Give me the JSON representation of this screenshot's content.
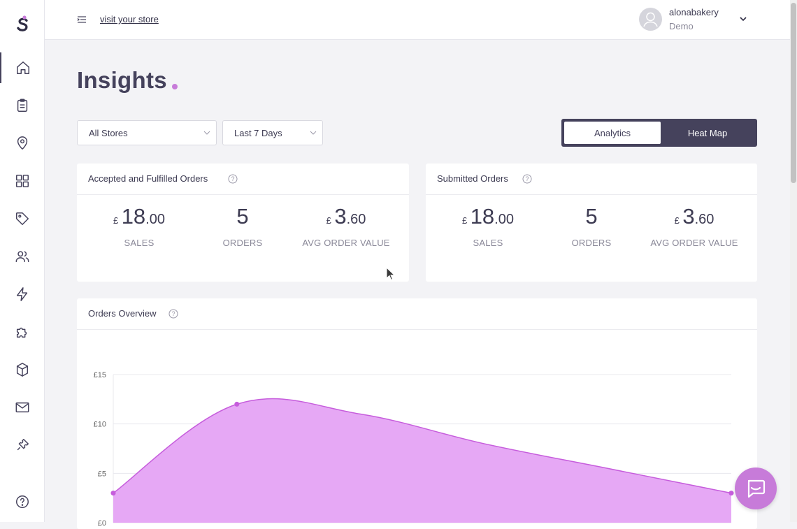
{
  "topbar": {
    "visit_link": "visit your store",
    "user_name": "alonabakery",
    "user_role": "Demo"
  },
  "sidebar": {
    "items": [
      {
        "icon": "home-icon",
        "active": true
      },
      {
        "icon": "clipboard-icon"
      },
      {
        "icon": "location-pin-icon"
      },
      {
        "icon": "grid-icon"
      },
      {
        "icon": "tag-icon"
      },
      {
        "icon": "users-icon"
      },
      {
        "icon": "lightning-icon"
      },
      {
        "icon": "puzzle-icon"
      },
      {
        "icon": "box-icon"
      },
      {
        "icon": "mail-icon"
      },
      {
        "icon": "ticket-icon"
      },
      {
        "icon": "help-icon"
      }
    ]
  },
  "page": {
    "title": "Insights"
  },
  "filters": {
    "store": "All Stores",
    "period": "Last 7 Days"
  },
  "view_toggle": {
    "active": "Analytics",
    "inactive": "Heat Map"
  },
  "cards": {
    "accepted": {
      "title": "Accepted and Fulfilled Orders",
      "sales": {
        "currency": "£",
        "major": "18",
        "minor": ".00",
        "label": "SALES"
      },
      "orders": {
        "value": "5",
        "label": "ORDERS"
      },
      "avg": {
        "currency": "£",
        "major": "3",
        "minor": ".60",
        "label": "AVG ORDER VALUE"
      }
    },
    "submitted": {
      "title": "Submitted Orders",
      "sales": {
        "currency": "£",
        "major": "18",
        "minor": ".00",
        "label": "SALES"
      },
      "orders": {
        "value": "5",
        "label": "ORDERS"
      },
      "avg": {
        "currency": "£",
        "major": "3",
        "minor": ".60",
        "label": "AVG ORDER VALUE"
      }
    }
  },
  "overview": {
    "title": "Orders Overview"
  },
  "chart_data": {
    "type": "area",
    "x": [
      0,
      1,
      2,
      3,
      4,
      5
    ],
    "y_ticks": [
      "£15",
      "£10",
      "£5",
      "£0"
    ],
    "ylim": [
      0,
      15
    ],
    "series": [
      {
        "values": [
          3,
          12,
          11,
          8,
          5.5,
          3
        ]
      }
    ],
    "markers_at": [
      0,
      1,
      5
    ],
    "colors": {
      "fill": "#e6a8f5",
      "line": "#c65ddc",
      "grid": "#e8e8ee"
    }
  },
  "colors": {
    "brand_dark": "#45425c",
    "accent": "#c77bd9"
  }
}
